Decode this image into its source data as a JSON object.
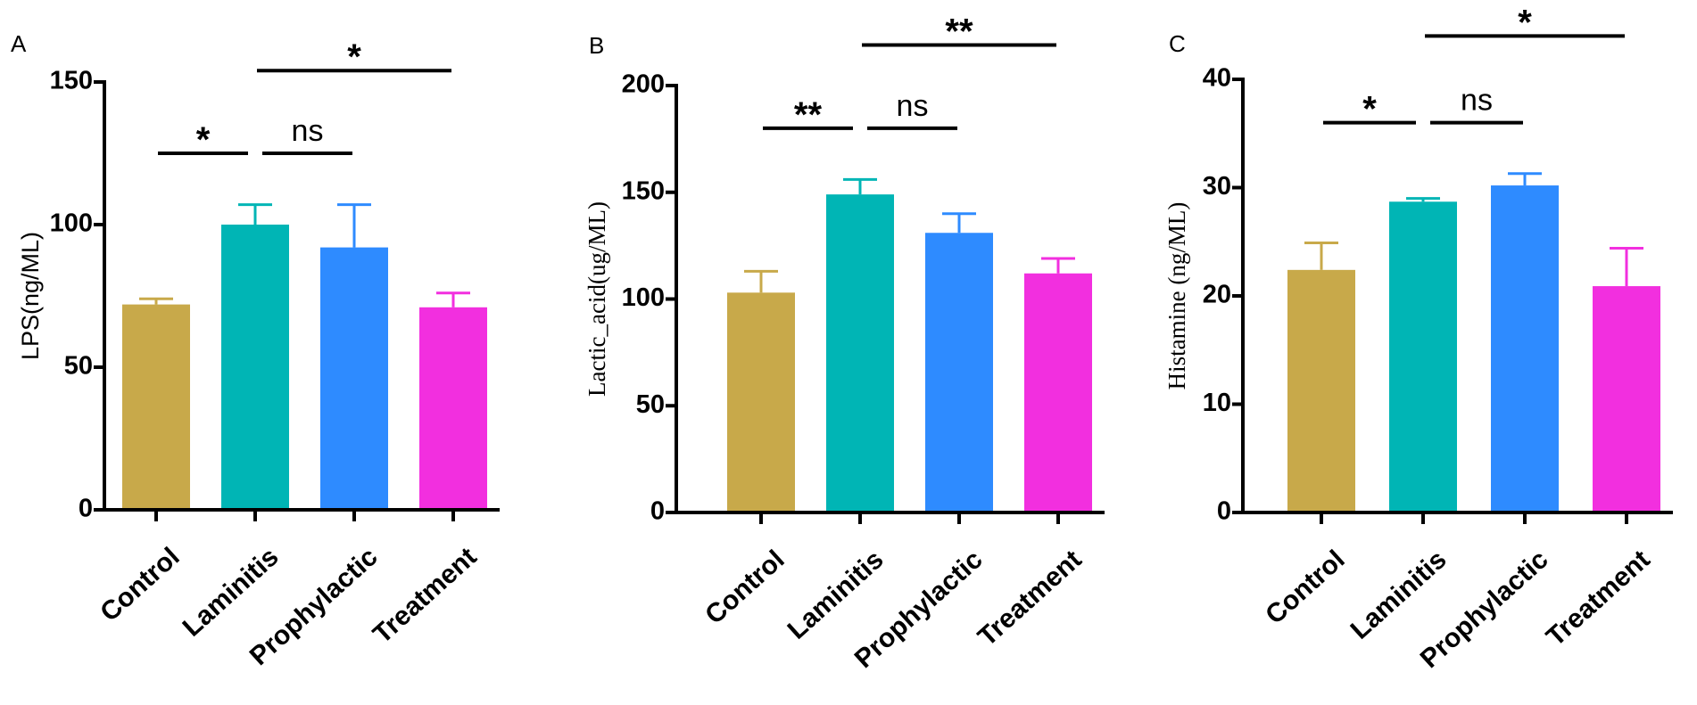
{
  "chart_data": [
    {
      "type": "bar",
      "panel": "A",
      "ylabel": "LPS(ng/ML)",
      "ylabel_style": "sans",
      "ylim": [
        0,
        150
      ],
      "yticks": [
        0,
        50,
        100,
        150
      ],
      "categories": [
        "Control",
        "Laminitis",
        "Prophylactic",
        "Treatment"
      ],
      "values": [
        72,
        100,
        92,
        71
      ],
      "errors": [
        2,
        7,
        15,
        5
      ],
      "colors": [
        "#c8a94a",
        "#00b5b5",
        "#2e8bff",
        "#f22fdf"
      ],
      "significance": [
        {
          "from": 0,
          "to": 1,
          "label": "*",
          "y": 125
        },
        {
          "from": 1,
          "to": 2,
          "label": "ns",
          "y": 125
        },
        {
          "from": 1,
          "to": 3,
          "label": "*",
          "y": 154
        }
      ]
    },
    {
      "type": "bar",
      "panel": "B",
      "ylabel": "Lactic_acid(ug/ML)",
      "ylabel_style": "serif",
      "ylim": [
        0,
        200
      ],
      "yticks": [
        0,
        50,
        100,
        150,
        200
      ],
      "categories": [
        "Control",
        "Laminitis",
        "Prophylactic",
        "Treatment"
      ],
      "values": [
        103,
        149,
        131,
        112
      ],
      "errors": [
        10,
        7,
        9,
        7
      ],
      "colors": [
        "#c8a94a",
        "#00b5b5",
        "#2e8bff",
        "#f22fdf"
      ],
      "significance": [
        {
          "from": 0,
          "to": 1,
          "label": "**",
          "y": 180
        },
        {
          "from": 1,
          "to": 2,
          "label": "ns",
          "y": 180
        },
        {
          "from": 1,
          "to": 3,
          "label": "**",
          "y": 219
        }
      ]
    },
    {
      "type": "bar",
      "panel": "C",
      "ylabel": "Histamine (ng/ML)",
      "ylabel_style": "serif",
      "ylim": [
        0,
        40
      ],
      "yticks": [
        0,
        10,
        20,
        30,
        40
      ],
      "categories": [
        "Control",
        "Laminitis",
        "Prophylactic",
        "Treatment"
      ],
      "values": [
        22.4,
        28.7,
        30.2,
        20.9
      ],
      "errors": [
        2.5,
        0.3,
        1.1,
        3.5
      ],
      "colors": [
        "#c8a94a",
        "#00b5b5",
        "#2e8bff",
        "#f22fdf"
      ],
      "significance": [
        {
          "from": 0,
          "to": 1,
          "label": "*",
          "y": 36
        },
        {
          "from": 1,
          "to": 2,
          "label": "ns",
          "y": 36
        },
        {
          "from": 1,
          "to": 3,
          "label": "*",
          "y": 44
        }
      ]
    }
  ]
}
